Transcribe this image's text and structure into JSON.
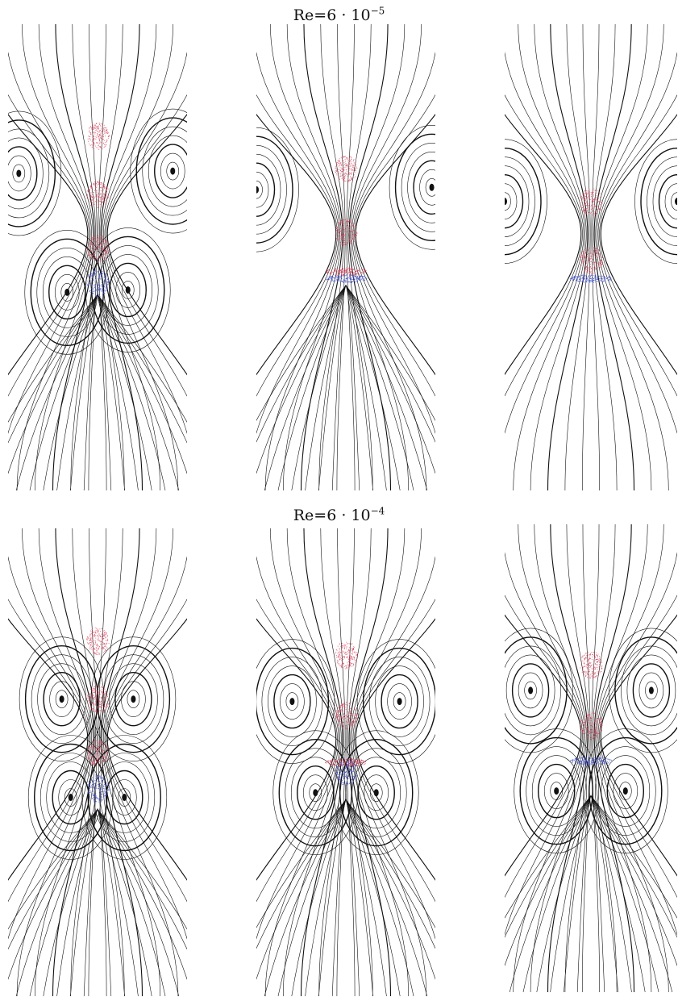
{
  "rows": [
    {
      "title": {
        "base": "Re=6 · 10",
        "exponent": "−5"
      },
      "panels": [
        {
          "drops": [
            {
              "fy": 0.24,
              "kind": "red"
            },
            {
              "fy": 0.365,
              "kind": "red"
            },
            {
              "fy": 0.48,
              "kind": "red"
            },
            {
              "fy": 0.555,
              "kind": "blue"
            }
          ],
          "vortices": [
            {
              "fx": 0.06,
              "fy": 0.32,
              "side": "L"
            },
            {
              "fx": 0.92,
              "fy": 0.315,
              "side": "R"
            },
            {
              "fx": 0.33,
              "fy": 0.575,
              "side": "L"
            },
            {
              "fx": 0.67,
              "fy": 0.57,
              "side": "R"
            }
          ],
          "plume": 0.58
        },
        {
          "drops": [
            {
              "fy": 0.31,
              "kind": "red"
            },
            {
              "fy": 0.445,
              "kind": "red"
            },
            {
              "fy": 0.53,
              "kind": "flat-red"
            },
            {
              "fy": 0.545,
              "kind": "flat-blue"
            }
          ],
          "vortices": [
            {
              "fx": 0.0,
              "fy": 0.355,
              "side": "L"
            },
            {
              "fx": 0.98,
              "fy": 0.35,
              "side": "R"
            }
          ],
          "plume": 0.56
        },
        {
          "drops": [
            {
              "fy": 0.38,
              "kind": "red"
            },
            {
              "fy": 0.505,
              "kind": "red"
            },
            {
              "fy": 0.545,
              "kind": "flat-blue"
            }
          ],
          "vortices": [
            {
              "fx": 0.0,
              "fy": 0.38,
              "side": "L"
            },
            {
              "fx": 1.0,
              "fy": 0.38,
              "side": "R"
            }
          ],
          "plume": 0
        }
      ]
    },
    {
      "title": {
        "base": "Re=6 · 10",
        "exponent": "−4"
      },
      "panels": [
        {
          "drops": [
            {
              "fy": 0.24,
              "kind": "red"
            },
            {
              "fy": 0.365,
              "kind": "red"
            },
            {
              "fy": 0.48,
              "kind": "red"
            },
            {
              "fy": 0.555,
              "kind": "blue"
            }
          ],
          "vortices": [
            {
              "fx": 0.3,
              "fy": 0.365,
              "side": "L"
            },
            {
              "fx": 0.7,
              "fy": 0.365,
              "side": "R"
            },
            {
              "fx": 0.35,
              "fy": 0.575,
              "side": "L"
            },
            {
              "fx": 0.65,
              "fy": 0.575,
              "side": "R"
            }
          ],
          "plume": 0.6
        },
        {
          "drops": [
            {
              "fy": 0.27,
              "kind": "red"
            },
            {
              "fy": 0.4,
              "kind": "red"
            },
            {
              "fy": 0.5,
              "kind": "flat-red"
            },
            {
              "fy": 0.52,
              "kind": "blue"
            }
          ],
          "vortices": [
            {
              "fx": 0.2,
              "fy": 0.37,
              "side": "L"
            },
            {
              "fx": 0.8,
              "fy": 0.37,
              "side": "R"
            },
            {
              "fx": 0.33,
              "fy": 0.565,
              "side": "L"
            },
            {
              "fx": 0.67,
              "fy": 0.565,
              "side": "R"
            }
          ],
          "plume": 0.58
        },
        {
          "drops": [
            {
              "fy": 0.3,
              "kind": "red"
            },
            {
              "fy": 0.43,
              "kind": "red"
            },
            {
              "fy": 0.505,
              "kind": "flat-blue"
            }
          ],
          "vortices": [
            {
              "fx": 0.15,
              "fy": 0.355,
              "side": "L"
            },
            {
              "fx": 0.85,
              "fy": 0.355,
              "side": "R"
            },
            {
              "fx": 0.3,
              "fy": 0.57,
              "side": "L"
            },
            {
              "fx": 0.7,
              "fy": 0.57,
              "side": "R"
            }
          ],
          "plume": 0.58
        }
      ]
    }
  ]
}
